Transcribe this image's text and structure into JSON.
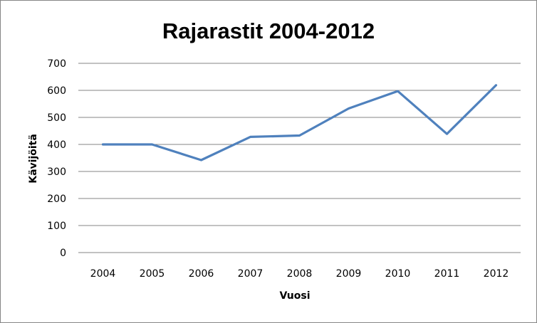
{
  "chart_data": {
    "type": "line",
    "title": "Rajarastit 2004-2012",
    "xlabel": "Vuosi",
    "ylabel": "Kävijöitä",
    "categories": [
      "2004",
      "2005",
      "2006",
      "2007",
      "2008",
      "2009",
      "2010",
      "2011",
      "2012"
    ],
    "series": [
      {
        "values": [
          400,
          400,
          342,
          428,
          433,
          533,
          597,
          439,
          619
        ],
        "color": "#4F81BD"
      }
    ],
    "ylim": [
      0,
      700
    ],
    "yticks": [
      "0",
      "100",
      "200",
      "300",
      "400",
      "500",
      "600",
      "700"
    ],
    "grid": true,
    "legend": "none"
  }
}
